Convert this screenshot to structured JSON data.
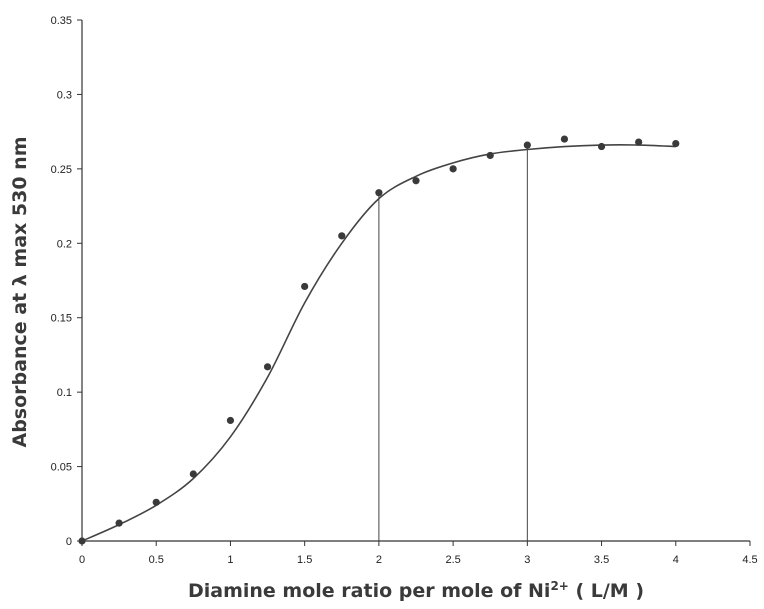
{
  "chart_data": {
    "type": "scatter",
    "title": "",
    "xlabel": "Diamine mole ratio per mole of Ni",
    "xlabel_sup": "2+",
    "xlabel_suffix": " ( L/M )",
    "ylabel": "Absorbance at λ max 530 nm",
    "xlim": [
      0,
      4.5
    ],
    "ylim": [
      0,
      0.35
    ],
    "xticks": [
      "0",
      "0.5",
      "1",
      "1.5",
      "2",
      "2.5",
      "3",
      "3.5",
      "4",
      "4.5"
    ],
    "yticks": [
      "0",
      "0.05",
      "0.1",
      "0.15",
      "0.2",
      "0.25",
      "0.3",
      "0.35"
    ],
    "grid": false,
    "legend": "none",
    "series": [
      {
        "points": [
          {
            "x": 0,
            "y": 0
          },
          {
            "x": 0.25,
            "y": 0.012
          },
          {
            "x": 0.5,
            "y": 0.026
          },
          {
            "x": 0.75,
            "y": 0.045
          },
          {
            "x": 1.0,
            "y": 0.081
          },
          {
            "x": 1.25,
            "y": 0.117
          },
          {
            "x": 1.5,
            "y": 0.171
          },
          {
            "x": 1.75,
            "y": 0.205
          },
          {
            "x": 2.0,
            "y": 0.234
          },
          {
            "x": 2.25,
            "y": 0.242
          },
          {
            "x": 2.5,
            "y": 0.25
          },
          {
            "x": 2.75,
            "y": 0.259
          },
          {
            "x": 3.0,
            "y": 0.266
          },
          {
            "x": 3.25,
            "y": 0.27
          },
          {
            "x": 3.5,
            "y": 0.265
          },
          {
            "x": 3.75,
            "y": 0.268
          },
          {
            "x": 4.0,
            "y": 0.267
          }
        ]
      }
    ],
    "fit_curve": [
      {
        "x": 0,
        "y": 0
      },
      {
        "x": 0.25,
        "y": 0.011
      },
      {
        "x": 0.5,
        "y": 0.024
      },
      {
        "x": 0.75,
        "y": 0.042
      },
      {
        "x": 1.0,
        "y": 0.07
      },
      {
        "x": 1.25,
        "y": 0.11
      },
      {
        "x": 1.5,
        "y": 0.16
      },
      {
        "x": 1.75,
        "y": 0.2
      },
      {
        "x": 2.0,
        "y": 0.23
      },
      {
        "x": 2.25,
        "y": 0.245
      },
      {
        "x": 2.5,
        "y": 0.254
      },
      {
        "x": 2.75,
        "y": 0.26
      },
      {
        "x": 3.0,
        "y": 0.263
      },
      {
        "x": 3.25,
        "y": 0.265
      },
      {
        "x": 3.5,
        "y": 0.266
      },
      {
        "x": 3.75,
        "y": 0.266
      },
      {
        "x": 4.0,
        "y": 0.265
      }
    ],
    "drop_lines": [
      {
        "x": 2,
        "y": 0.232
      },
      {
        "x": 3,
        "y": 0.264
      }
    ]
  }
}
